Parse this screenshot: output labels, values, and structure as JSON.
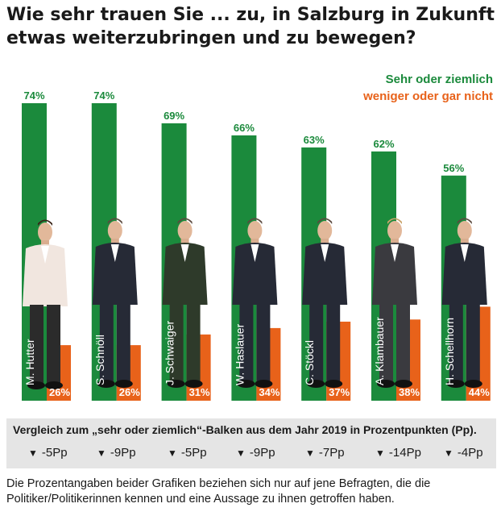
{
  "title": "Wie sehr trauen Sie ... zu, in Salzburg in Zukunft etwas weiterzubringen und zu bewegen?",
  "legend": {
    "positive": "Sehr oder ziemlich",
    "negative": "weniger oder gar nicht"
  },
  "colors": {
    "positive": "#1b8a3c",
    "negative": "#e8621a",
    "comparison_bg": "#e5e5e5"
  },
  "chart_data": {
    "type": "bar",
    "title": "Wie sehr trauen Sie ... zu, in Salzburg in Zukunft etwas weiterzubringen und zu bewegen?",
    "categories": [
      "M. Hutter",
      "S. Schnöll",
      "J. Schwaiger",
      "W. Haslauer",
      "C. Stöckl",
      "A. Klambauer",
      "H. Schellhorn"
    ],
    "series": [
      {
        "name": "Sehr oder ziemlich",
        "values": [
          74,
          74,
          69,
          66,
          63,
          62,
          56
        ]
      },
      {
        "name": "weniger oder gar nicht",
        "values": [
          26,
          26,
          31,
          34,
          37,
          38,
          44
        ]
      }
    ],
    "value_labels": {
      "positive": [
        "74%",
        "74%",
        "69%",
        "66%",
        "63%",
        "62%",
        "56%"
      ],
      "negative": [
        "26%",
        "26%",
        "31%",
        "34%",
        "37%",
        "38%",
        "44%"
      ]
    },
    "ylim": [
      0,
      74
    ],
    "xlabel": "",
    "ylabel": "",
    "grid": false,
    "legend": "top-right"
  },
  "comparison": {
    "title": "Vergleich zum „sehr oder ziemlich“-Balken aus dem Jahr 2019 in Prozentpunkten (Pp).",
    "arrow_icon": "triangle-down-icon",
    "changes": [
      "-5Pp",
      "-9Pp",
      "-5Pp",
      "-9Pp",
      "-7Pp",
      "-14Pp",
      "-4Pp"
    ]
  },
  "footnote": "Die Prozentangaben beider Grafiken beziehen sich nur auf jene Befragten, die die Politiker/Politikerinnen kennen und eine Aussage zu ihnen getroffen haben."
}
